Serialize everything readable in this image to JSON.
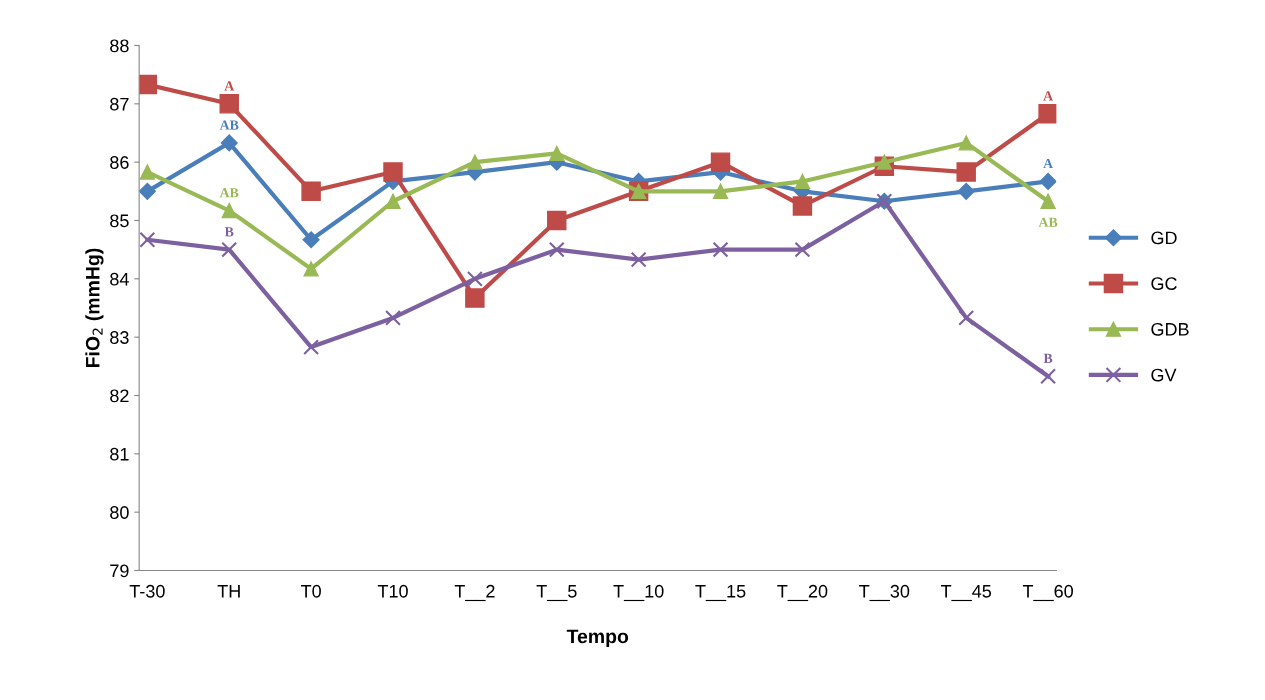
{
  "chart_data": {
    "type": "line",
    "xlabel": "Tempo",
    "ylabel": "FiO$_{2}$ (mmHg)",
    "categories": [
      "T-30",
      "TH",
      "T0",
      "T10",
      "T__2",
      "T__5",
      "T__10",
      "T__15",
      "T__20",
      "T__30",
      "T__45",
      "T__60"
    ],
    "ylim": [
      79,
      88
    ],
    "yticks": [
      79,
      80,
      81,
      82,
      83,
      84,
      85,
      86,
      87,
      88
    ],
    "grid": false,
    "legend": "right",
    "series": [
      {
        "name": "GD",
        "color": "#4a7ebb",
        "marker": "diamond",
        "values": [
          85.5,
          86.33,
          84.67,
          85.67,
          85.83,
          86.0,
          85.67,
          85.83,
          85.5,
          85.33,
          85.5,
          85.67
        ]
      },
      {
        "name": "GC",
        "color": "#be4b48",
        "marker": "square",
        "values": [
          87.33,
          87.0,
          85.5,
          85.83,
          83.67,
          85.0,
          85.5,
          86.0,
          85.25,
          85.93,
          85.83,
          86.83
        ]
      },
      {
        "name": "GDB",
        "color": "#98b954",
        "marker": "triangle",
        "values": [
          85.83,
          85.17,
          84.17,
          85.33,
          86.0,
          86.15,
          85.5,
          85.5,
          85.67,
          86.0,
          86.33,
          85.33
        ]
      },
      {
        "name": "GV",
        "color": "#7d60a0",
        "marker": "cross",
        "values": [
          84.67,
          84.5,
          82.83,
          83.33,
          84.0,
          84.5,
          84.33,
          84.5,
          84.5,
          85.33,
          83.33,
          82.33
        ]
      }
    ],
    "annotations": [
      {
        "text": "A",
        "x": "TH",
        "y": 87.0
      },
      {
        "text": "AB",
        "x": "TH",
        "y": 86.33
      },
      {
        "text": "AB",
        "x": "TH",
        "y": 85.17
      },
      {
        "text": "B",
        "x": "TH",
        "y": 84.5
      },
      {
        "text": "A",
        "x": "T__60",
        "y": 86.83
      },
      {
        "text": "A",
        "x": "T__60",
        "y": 85.67
      },
      {
        "text": "AB",
        "x": "T__60",
        "y": 85.33
      },
      {
        "text": "B",
        "x": "T__60",
        "y": 82.33
      }
    ]
  }
}
